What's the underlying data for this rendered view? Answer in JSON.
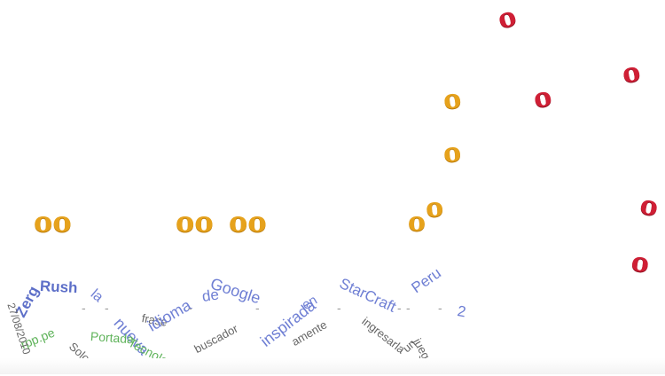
{
  "logo_letters": {
    "o": "o",
    "oo": "oo"
  },
  "words": {
    "rush": "Rush",
    "zerg": "Zerg",
    "la": "la",
    "nueva": "nueva",
    "frase": "frase",
    "idioma": "idioma",
    "de": "de",
    "google": "Google",
    "inspirada": "inspirada",
    "en": "en",
    "starcraft": "StarCraft",
    "peru": "Peru",
    "num_2": "2",
    "rpp_pe": "rpp.pe",
    "portada": "Portada",
    "tecnologia": "Tecnología",
    "buscador": "buscador",
    "ingresarla": "ingresarla",
    "juego": "juego",
    "un": "un",
    "mente": "amente",
    "date": "27/08/2010",
    "sola": "Solo",
    "dash": "-"
  },
  "colors": {
    "gold": "#e6a21c",
    "red": "#cf1f35",
    "blue": "#6f7fd4",
    "green": "#5fb35a",
    "gray": "#666666"
  }
}
